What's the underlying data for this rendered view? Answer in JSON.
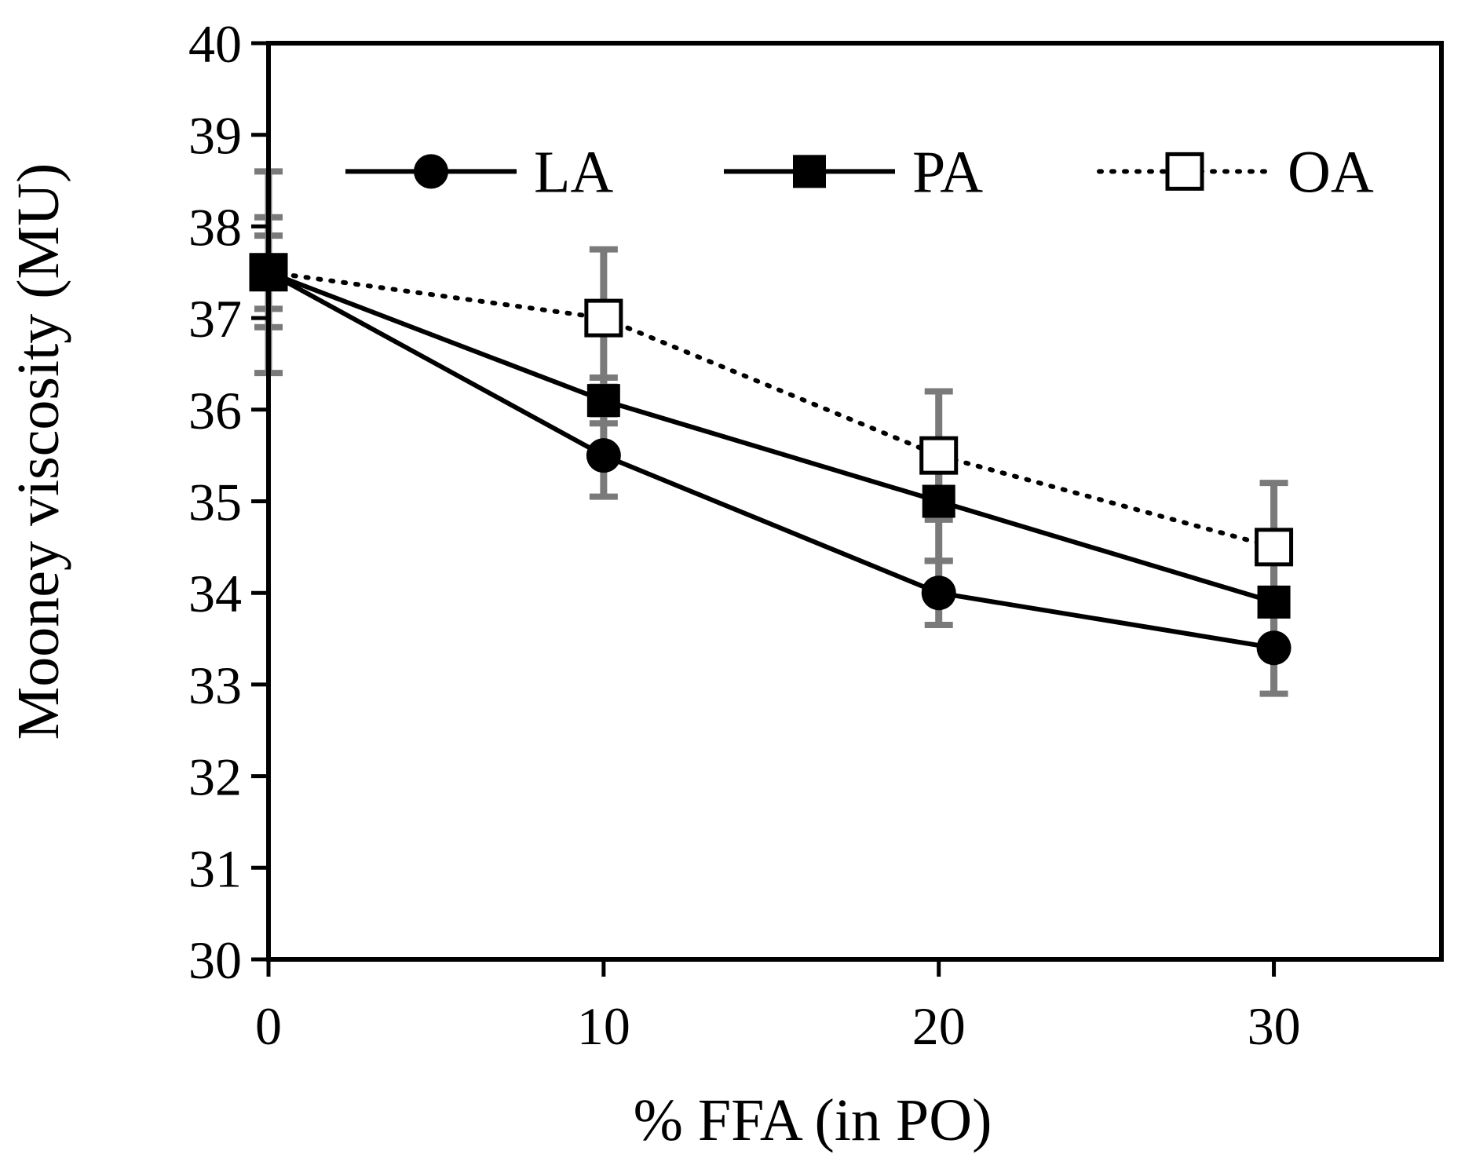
{
  "chart_data": {
    "type": "line",
    "title": "",
    "xlabel": "% FFA (in PO)",
    "ylabel": "Mooney viscosity  (MU)",
    "x": [
      0,
      10,
      20,
      30
    ],
    "xticks": [
      0,
      10,
      20,
      30
    ],
    "yticks": [
      30,
      31,
      32,
      33,
      34,
      35,
      36,
      37,
      38,
      39,
      40
    ],
    "xlim": [
      0,
      35
    ],
    "ylim": [
      30,
      40
    ],
    "grid": false,
    "legend_position": "top",
    "series": [
      {
        "name": "LA",
        "marker": "filled-circle",
        "line": "solid",
        "values": [
          37.5,
          35.5,
          34.0,
          33.4
        ],
        "errors": [
          1.1,
          0.45,
          0.35,
          0.5
        ]
      },
      {
        "name": "PA",
        "marker": "filled-square",
        "line": "solid",
        "values": [
          37.5,
          36.1,
          35.0,
          33.9
        ],
        "errors": [
          0.4,
          0.25,
          0.65,
          0.55
        ]
      },
      {
        "name": "OA",
        "marker": "open-square",
        "line": "dotted",
        "values": [
          37.5,
          37.0,
          35.5,
          34.5
        ],
        "errors": [
          0.6,
          0.75,
          0.7,
          0.7
        ]
      }
    ],
    "colors": {
      "line": "#000000",
      "error_bar": "#7a7a7a",
      "background": "#ffffff"
    }
  }
}
